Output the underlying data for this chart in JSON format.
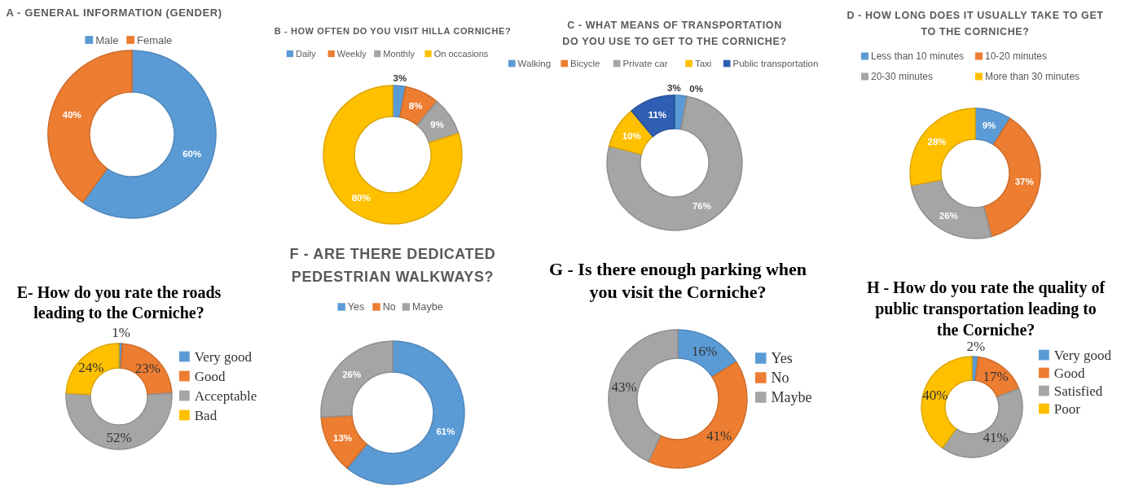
{
  "chart_data": [
    {
      "type": "donut",
      "title": "A - GENERAL INFORMATION (GENDER)",
      "categories": [
        "Male",
        "Female"
      ],
      "values": [
        60,
        40
      ],
      "colors": [
        "#5b9bd5",
        "#ed7d31"
      ],
      "value_labels": [
        "60%",
        "40%"
      ],
      "legend": "top"
    },
    {
      "type": "donut",
      "title": "B - HOW OFTEN DO YOU VISIT HILLA CORNICHE?",
      "categories": [
        "Daily",
        "Weekly",
        "Monthly",
        "On occasions"
      ],
      "values": [
        3,
        8,
        9,
        80
      ],
      "colors": [
        "#5b9bd5",
        "#ed7d31",
        "#a5a5a5",
        "#ffc000"
      ],
      "value_labels": [
        "3%",
        "8%",
        "9%",
        "80%"
      ],
      "legend": "top"
    },
    {
      "type": "donut",
      "title": "C - WHAT MEANS OF TRANSPORTATION DO YOU USE TO GET TO THE CORNICHE?",
      "categories": [
        "Walking",
        "Bicycle",
        "Private car",
        "Taxi",
        "Public transportation"
      ],
      "values": [
        3,
        0,
        76,
        10,
        11
      ],
      "colors": [
        "#5b9bd5",
        "#ed7d31",
        "#a5a5a5",
        "#ffc000",
        "#2f5fb3"
      ],
      "value_labels": [
        "3%",
        "0%",
        "76%",
        "10%",
        "11%"
      ],
      "legend": "top"
    },
    {
      "type": "donut",
      "title": "D - HOW LONG DOES IT USUALLY TAKE TO GET TO THE CORNICHE?",
      "categories": [
        "Less than 10 minutes",
        "10-20 minutes",
        "20-30 minutes",
        "More than 30 minutes"
      ],
      "values": [
        9,
        37,
        26,
        28
      ],
      "colors": [
        "#5b9bd5",
        "#ed7d31",
        "#a5a5a5",
        "#ffc000"
      ],
      "value_labels": [
        "9%",
        "37%",
        "26%",
        "28%"
      ],
      "legend": "top"
    },
    {
      "type": "donut",
      "title": "E- How do you rate the roads leading to the Corniche?",
      "categories": [
        "Very good",
        "Good",
        "Acceptable",
        "Bad"
      ],
      "values": [
        1,
        23,
        52,
        24
      ],
      "colors": [
        "#5b9bd5",
        "#ed7d31",
        "#a5a5a5",
        "#ffc000"
      ],
      "value_labels": [
        "1%",
        "23%",
        "52%",
        "24%"
      ],
      "legend": "right"
    },
    {
      "type": "donut",
      "title": "F - ARE THERE DEDICATED PEDESTRIAN WALKWAYS?",
      "categories": [
        "Yes",
        "No",
        "Maybe"
      ],
      "values": [
        61,
        13,
        26
      ],
      "colors": [
        "#5b9bd5",
        "#ed7d31",
        "#a5a5a5"
      ],
      "value_labels": [
        "61%",
        "13%",
        "26%"
      ],
      "legend": "top"
    },
    {
      "type": "donut",
      "title": "G - Is there enough parking when you visit the Corniche?",
      "categories": [
        "Yes",
        "No",
        "Maybe"
      ],
      "values": [
        16,
        41,
        43
      ],
      "colors": [
        "#5b9bd5",
        "#ed7d31",
        "#a5a5a5"
      ],
      "value_labels": [
        "16%",
        "41%",
        "43%"
      ],
      "legend": "right"
    },
    {
      "type": "donut",
      "title": "H - How do you rate the quality of public transportation leading to the Corniche?",
      "categories": [
        "Very good",
        "Good",
        "Satisfied",
        "Poor"
      ],
      "values": [
        2,
        17,
        41,
        40
      ],
      "colors": [
        "#5b9bd5",
        "#ed7d31",
        "#a5a5a5",
        "#ffc000"
      ],
      "value_labels": [
        "2%",
        "17%",
        "41%",
        "40%"
      ],
      "legend": "right"
    }
  ]
}
